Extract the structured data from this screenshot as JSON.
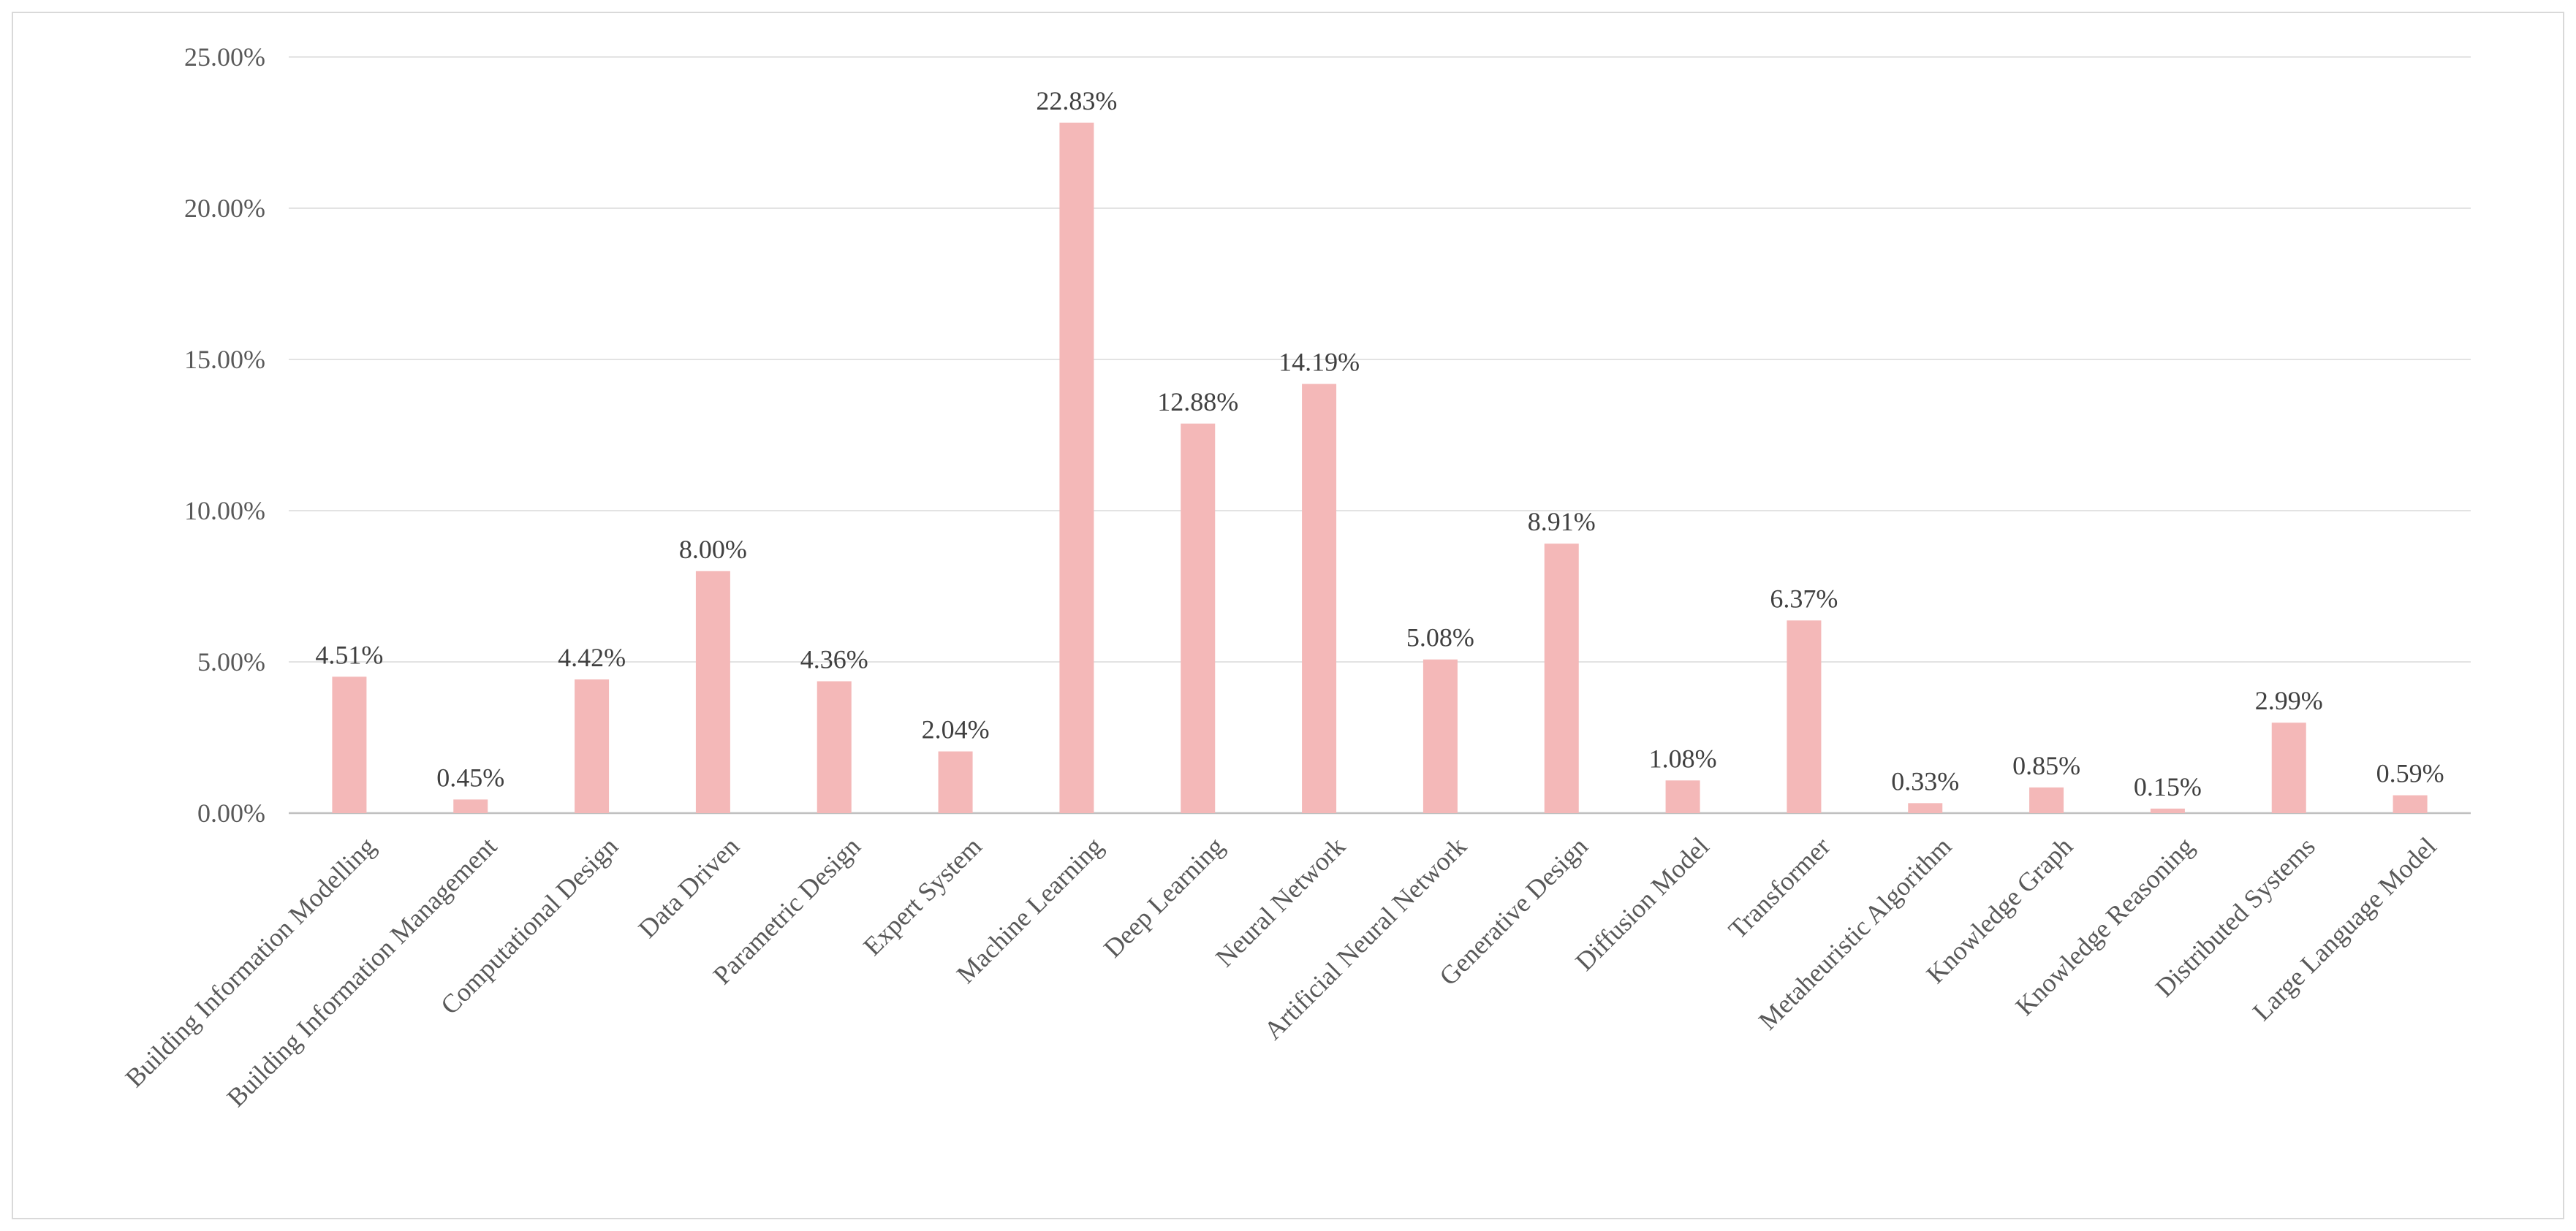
{
  "chart_data": {
    "type": "bar",
    "categories": [
      "Building Information Modelling",
      "Building Information Management",
      "Computational  Design",
      "Data Driven",
      "Parametric Design",
      "Expert System",
      "Machine Learning",
      "Deep Learning",
      "Neural Network",
      "Artificial Neural Network",
      "Generative Design",
      "Diffusion Model",
      "Transformer",
      "Metaheuristic Algorithm",
      "Knowledge Graph",
      "Knowledge Reasoning",
      "Distributed Systems",
      "Large Language Model"
    ],
    "values": [
      4.51,
      0.45,
      4.42,
      8.0,
      4.36,
      2.04,
      22.83,
      12.88,
      14.19,
      5.08,
      8.91,
      1.08,
      6.37,
      0.33,
      0.85,
      0.15,
      2.99,
      0.59
    ],
    "value_labels": [
      "4.51%",
      "0.45%",
      "4.42%",
      "8.00%",
      "4.36%",
      "2.04%",
      "22.83%",
      "12.88%",
      "14.19%",
      "5.08%",
      "8.91%",
      "1.08%",
      "6.37%",
      "0.33%",
      "0.85%",
      "0.15%",
      "2.99%",
      "0.59%"
    ],
    "y_ticks": [
      0,
      5,
      10,
      15,
      20,
      25
    ],
    "y_tick_labels": [
      "0.00%",
      "5.00%",
      "10.00%",
      "15.00%",
      "20.00%",
      "25.00%"
    ],
    "ylim": [
      0,
      25
    ],
    "title": "",
    "xlabel": "",
    "ylabel": "",
    "grid": "horizontal",
    "legend": "none",
    "colors": {
      "bar": "#f4b8b8",
      "grid": "#e3e3e3",
      "axis": "#bfbfbf",
      "frame": "#d9d9d9"
    }
  }
}
